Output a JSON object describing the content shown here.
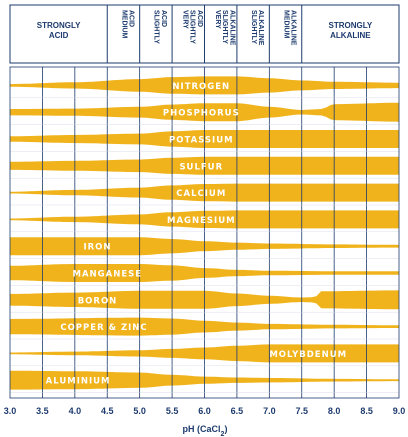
{
  "colors": {
    "band": "#f0b31c",
    "frame": "#1d3b6e",
    "grid": "#1d3b6e",
    "label": "#ffffff"
  },
  "chart_data": {
    "type": "area",
    "xlabel": "pH (CaCl",
    "xlabel_sub": "2",
    "xlabel_end": ")",
    "xlim": [
      3.0,
      9.0
    ],
    "xticks": [
      3.0,
      3.5,
      4.0,
      4.5,
      5.0,
      5.5,
      6.0,
      6.5,
      7.0,
      7.5,
      8.0,
      8.5,
      9.0
    ],
    "xtick_labels": [
      "3.0",
      "3.5",
      "4.0",
      "4.5",
      "5.0",
      "5.5",
      "6.0",
      "6.5",
      "7.0",
      "7.5",
      "8.0",
      "8.5",
      "9.0"
    ],
    "header_zones": [
      {
        "lines": [
          "STRONGLY",
          "ACID"
        ],
        "from": 3.0,
        "to": 4.5,
        "vertical": false
      },
      {
        "lines": [
          "MEDIUM",
          "ACID"
        ],
        "from": 4.5,
        "to": 5.0,
        "vertical": true
      },
      {
        "lines": [
          "SLIGHTLY",
          "ACID"
        ],
        "from": 5.0,
        "to": 5.5,
        "vertical": true
      },
      {
        "lines": [
          "VERY",
          "SLIGHTLY",
          "ACID"
        ],
        "from": 5.5,
        "to": 6.0,
        "vertical": true
      },
      {
        "lines": [
          "VERY",
          "SLIGHTLY",
          "ALKALINE"
        ],
        "from": 6.0,
        "to": 6.5,
        "vertical": true
      },
      {
        "lines": [
          "SLIGHTLY",
          "ALKALINE"
        ],
        "from": 6.5,
        "to": 7.0,
        "vertical": true
      },
      {
        "lines": [
          "MEDIUM",
          "ALKALINE"
        ],
        "from": 7.0,
        "to": 7.5,
        "vertical": true
      },
      {
        "lines": [
          "STRONGLY",
          "ALKALINE"
        ],
        "from": 7.5,
        "to": 9.0,
        "vertical": false
      }
    ],
    "series": [
      {
        "name": "NITROGEN",
        "label_ph": 5.95,
        "profile": [
          [
            3.0,
            0.15
          ],
          [
            4.0,
            0.35
          ],
          [
            5.0,
            0.7
          ],
          [
            5.5,
            0.92
          ],
          [
            6.0,
            1.0
          ],
          [
            6.5,
            1.0
          ],
          [
            7.0,
            0.8
          ],
          [
            7.5,
            0.55
          ],
          [
            8.0,
            0.4
          ],
          [
            9.0,
            0.3
          ]
        ]
      },
      {
        "name": "PHOSPHORUS",
        "label_ph": 5.95,
        "profile": [
          [
            3.0,
            0.35
          ],
          [
            4.0,
            0.4
          ],
          [
            5.0,
            0.6
          ],
          [
            5.5,
            0.85
          ],
          [
            6.0,
            1.0
          ],
          [
            6.5,
            1.0
          ],
          [
            7.0,
            0.6
          ],
          [
            7.5,
            0.25
          ],
          [
            7.8,
            0.35
          ],
          [
            8.0,
            0.9
          ],
          [
            9.0,
            1.05
          ]
        ]
      },
      {
        "name": "POTASSIUM",
        "label_ph": 5.95,
        "profile": [
          [
            3.0,
            0.3
          ],
          [
            4.0,
            0.45
          ],
          [
            5.0,
            0.6
          ],
          [
            5.5,
            0.85
          ],
          [
            6.0,
            1.0
          ],
          [
            9.0,
            1.0
          ]
        ]
      },
      {
        "name": "SULFUR",
        "label_ph": 5.95,
        "profile": [
          [
            3.0,
            0.45
          ],
          [
            4.0,
            0.55
          ],
          [
            5.0,
            0.7
          ],
          [
            5.5,
            0.9
          ],
          [
            6.0,
            1.0
          ],
          [
            9.0,
            1.0
          ]
        ]
      },
      {
        "name": "CALCIUM",
        "label_ph": 5.95,
        "profile": [
          [
            3.0,
            0.1
          ],
          [
            4.0,
            0.3
          ],
          [
            5.0,
            0.55
          ],
          [
            5.5,
            0.8
          ],
          [
            6.0,
            0.95
          ],
          [
            6.5,
            1.0
          ],
          [
            9.0,
            1.0
          ]
        ]
      },
      {
        "name": "MAGNESIUM",
        "label_ph": 5.95,
        "profile": [
          [
            3.0,
            0.1
          ],
          [
            4.0,
            0.3
          ],
          [
            5.0,
            0.55
          ],
          [
            5.5,
            0.8
          ],
          [
            6.0,
            0.95
          ],
          [
            6.5,
            1.0
          ],
          [
            9.0,
            1.0
          ]
        ]
      },
      {
        "name": "IRON",
        "label_ph": 4.35,
        "profile": [
          [
            3.0,
            1.0
          ],
          [
            5.0,
            1.0
          ],
          [
            5.5,
            0.8
          ],
          [
            6.0,
            0.55
          ],
          [
            6.5,
            0.4
          ],
          [
            7.0,
            0.3
          ],
          [
            8.0,
            0.2
          ],
          [
            9.0,
            0.15
          ]
        ]
      },
      {
        "name": "MANGANESE",
        "label_ph": 4.5,
        "profile": [
          [
            3.0,
            0.8
          ],
          [
            4.0,
            1.0
          ],
          [
            5.0,
            1.0
          ],
          [
            5.5,
            0.85
          ],
          [
            6.0,
            0.55
          ],
          [
            6.5,
            0.35
          ],
          [
            7.0,
            0.25
          ],
          [
            8.0,
            0.2
          ],
          [
            9.0,
            0.2
          ]
        ]
      },
      {
        "name": "BORON",
        "label_ph": 4.35,
        "profile": [
          [
            3.0,
            0.65
          ],
          [
            4.0,
            0.8
          ],
          [
            5.0,
            1.0
          ],
          [
            6.0,
            1.0
          ],
          [
            6.5,
            0.7
          ],
          [
            7.0,
            0.45
          ],
          [
            7.5,
            0.25
          ],
          [
            7.7,
            0.3
          ],
          [
            7.8,
            0.95
          ],
          [
            9.0,
            1.05
          ]
        ]
      },
      {
        "name": "COPPER & ZINC",
        "label_ph": 4.45,
        "profile": [
          [
            3.0,
            0.85
          ],
          [
            5.0,
            1.0
          ],
          [
            5.5,
            0.9
          ],
          [
            6.0,
            0.65
          ],
          [
            6.5,
            0.45
          ],
          [
            7.0,
            0.3
          ],
          [
            8.0,
            0.2
          ],
          [
            9.0,
            0.15
          ]
        ]
      },
      {
        "name": "MOLYBDENUM",
        "label_ph": 7.6,
        "profile": [
          [
            3.0,
            0.1
          ],
          [
            4.0,
            0.2
          ],
          [
            5.0,
            0.35
          ],
          [
            5.5,
            0.5
          ],
          [
            6.0,
            0.65
          ],
          [
            6.5,
            0.85
          ],
          [
            7.0,
            1.0
          ],
          [
            9.0,
            1.0
          ]
        ]
      },
      {
        "name": "ALUMINIUM",
        "label_ph": 4.05,
        "profile": [
          [
            3.0,
            1.05
          ],
          [
            4.0,
            1.0
          ],
          [
            5.0,
            0.85
          ],
          [
            5.5,
            0.6
          ],
          [
            6.0,
            0.4
          ],
          [
            6.5,
            0.3
          ],
          [
            7.0,
            0.25
          ],
          [
            8.0,
            0.15
          ],
          [
            9.0,
            0.1
          ]
        ]
      }
    ]
  }
}
